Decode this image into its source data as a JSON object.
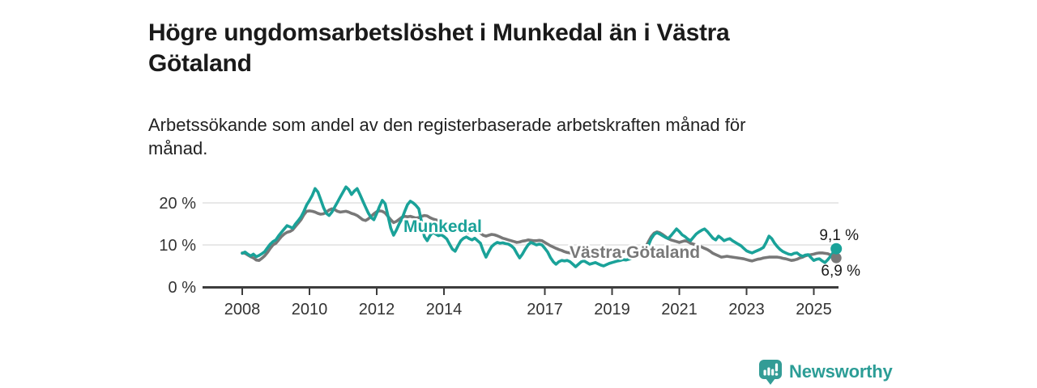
{
  "title": "Högre ungdomsarbetslöshet i Munkedal än i Västra Götaland",
  "subtitle": "Arbetssökande som andel av den registerbaserade arbetskraften månad för månad.",
  "footer": {
    "brand": "Newsworthy",
    "brand_icon": "bar-chart-speech-bubble-icon"
  },
  "colors": {
    "munkedal": "#1aa299",
    "vastra_gotaland": "#787878",
    "axis": "#3d3d3d",
    "grid": "#dbdbdb",
    "title_text": "#1a1a1a",
    "brand_teal": "#2c9d96"
  },
  "chart_data": {
    "type": "line",
    "x_start": "2008-01",
    "x_end": "2025-09",
    "start_year": 2008,
    "points_per_year": 12,
    "ylim": [
      0,
      26
    ],
    "grid": "horizontal-only",
    "legend_position": "inline-labels-on-lines",
    "yticks": [
      {
        "value": 0,
        "label": "0 %",
        "gridline": false
      },
      {
        "value": 10,
        "label": "10 %",
        "gridline": true
      },
      {
        "value": 20,
        "label": "20 %",
        "gridline": true
      }
    ],
    "xticks": [
      {
        "year": 2008,
        "label": "2008"
      },
      {
        "year": 2010,
        "label": "2010"
      },
      {
        "year": 2012,
        "label": "2012"
      },
      {
        "year": 2014,
        "label": "2014"
      },
      {
        "year": 2017,
        "label": "2017"
      },
      {
        "year": 2019,
        "label": "2019"
      },
      {
        "year": 2021,
        "label": "2021"
      },
      {
        "year": 2023,
        "label": "2023"
      },
      {
        "year": 2025,
        "label": "2025"
      }
    ],
    "series": [
      {
        "name": "Munkedal",
        "color": "#1aa299",
        "end_label": "9,1 %",
        "end_value": 9.1,
        "values": [
          8.0,
          8.3,
          7.8,
          7.4,
          7.8,
          7.2,
          7.5,
          7.9,
          8.4,
          9.3,
          10.2,
          10.8,
          11.2,
          12.2,
          13.0,
          13.8,
          14.6,
          14.3,
          14.0,
          15.0,
          15.8,
          16.7,
          18.0,
          19.5,
          20.6,
          21.8,
          23.4,
          22.6,
          20.8,
          18.9,
          17.5,
          17.0,
          17.8,
          19.0,
          20.2,
          21.4,
          22.6,
          23.8,
          23.2,
          22.0,
          22.8,
          23.4,
          22.0,
          20.5,
          19.0,
          17.6,
          16.5,
          16.0,
          17.5,
          19.2,
          20.6,
          19.8,
          17.0,
          14.0,
          12.3,
          13.5,
          15.0,
          16.2,
          18.0,
          19.6,
          20.4,
          20.0,
          19.4,
          18.6,
          15.5,
          12.0,
          11.0,
          12.2,
          13.0,
          12.6,
          12.2,
          12.4,
          12.0,
          11.4,
          10.2,
          9.0,
          8.5,
          9.8,
          11.0,
          11.6,
          11.9,
          11.5,
          11.2,
          11.6,
          11.0,
          10.4,
          8.6,
          7.1,
          8.4,
          9.6,
          10.2,
          10.6,
          10.4,
          10.5,
          10.3,
          10.2,
          9.8,
          9.2,
          8.0,
          6.9,
          7.8,
          9.0,
          10.0,
          10.6,
          10.3,
          10.0,
          10.2,
          10.0,
          9.2,
          8.3,
          7.0,
          6.0,
          5.4,
          6.0,
          6.3,
          6.2,
          6.3,
          6.0,
          5.4,
          4.8,
          5.4,
          6.0,
          6.2,
          5.8,
          5.4,
          5.6,
          5.8,
          5.5,
          5.2,
          5.0,
          5.3,
          5.6,
          5.8,
          6.0,
          6.2,
          6.3,
          6.5,
          6.4,
          6.6,
          6.8,
          7.0,
          7.2,
          7.4,
          7.6,
          8.5,
          10.0,
          11.5,
          12.5,
          12.9,
          12.6,
          12.2,
          11.8,
          11.5,
          12.2,
          13.0,
          13.8,
          13.2,
          12.4,
          12.0,
          11.4,
          11.0,
          11.8,
          12.6,
          13.1,
          13.5,
          13.8,
          13.2,
          12.4,
          11.6,
          11.2,
          12.1,
          11.6,
          11.0,
          11.3,
          11.5,
          11.0,
          10.6,
          10.2,
          9.8,
          9.2,
          8.6,
          8.3,
          8.1,
          8.4,
          8.7,
          9.0,
          9.4,
          10.6,
          12.1,
          11.5,
          10.4,
          9.6,
          8.9,
          8.4,
          8.1,
          7.8,
          7.7,
          8.0,
          8.1,
          7.6,
          7.3,
          7.6,
          7.7,
          7.0,
          6.3,
          6.6,
          6.7,
          6.2,
          5.8,
          6.5,
          7.3,
          8.3,
          9.1
        ]
      },
      {
        "name": "Västra Götaland",
        "color": "#787878",
        "end_label": "6,9 %",
        "end_value": 6.9,
        "values": [
          8.1,
          8.0,
          7.6,
          7.2,
          6.9,
          6.4,
          6.3,
          6.8,
          7.4,
          8.2,
          9.2,
          10.0,
          10.4,
          11.2,
          12.0,
          12.6,
          13.0,
          13.2,
          13.6,
          14.4,
          15.2,
          16.0,
          17.2,
          18.0,
          18.1,
          18.0,
          17.8,
          17.5,
          17.3,
          17.4,
          17.8,
          18.3,
          18.6,
          18.4,
          18.0,
          17.8,
          17.9,
          18.0,
          17.8,
          17.5,
          17.3,
          17.0,
          16.5,
          16.0,
          15.8,
          16.2,
          16.8,
          17.4,
          17.9,
          18.1,
          18.0,
          17.6,
          16.8,
          16.0,
          15.3,
          15.6,
          16.1,
          16.6,
          16.8,
          16.7,
          16.8,
          16.6,
          16.4,
          16.5,
          16.8,
          17.0,
          16.9,
          16.5,
          16.2,
          16.0,
          15.8,
          15.5,
          15.2,
          14.8,
          14.4,
          14.0,
          13.6,
          13.4,
          13.2,
          13.0,
          12.9,
          13.0,
          13.1,
          13.3,
          13.2,
          12.8,
          12.3,
          12.1,
          12.3,
          12.5,
          12.4,
          12.2,
          11.9,
          11.6,
          11.4,
          11.2,
          11.0,
          10.8,
          10.6,
          10.7,
          10.9,
          11.0,
          11.2,
          11.1,
          11.0,
          11.0,
          11.1,
          11.0,
          10.6,
          10.2,
          9.8,
          9.5,
          9.2,
          8.9,
          8.7,
          8.4,
          8.2,
          8.1,
          8.2,
          8.3,
          8.3,
          8.4,
          8.5,
          8.6,
          8.5,
          8.4,
          8.3,
          8.2,
          8.1,
          8.0,
          8.1,
          8.2,
          8.2,
          8.3,
          8.3,
          8.4,
          8.4,
          8.5,
          8.5,
          8.4,
          8.4,
          8.5,
          8.6,
          8.8,
          9.5,
          10.8,
          12.0,
          12.8,
          13.1,
          12.9,
          12.5,
          12.0,
          11.5,
          11.2,
          11.0,
          10.8,
          10.6,
          10.8,
          11.0,
          10.8,
          10.4,
          10.2,
          10.0,
          9.8,
          9.5,
          9.2,
          8.9,
          8.5,
          8.0,
          7.7,
          7.4,
          7.1,
          7.2,
          7.3,
          7.2,
          7.1,
          7.0,
          6.9,
          6.8,
          6.7,
          6.5,
          6.3,
          6.2,
          6.4,
          6.6,
          6.7,
          6.9,
          7.0,
          7.1,
          7.1,
          7.1,
          7.1,
          7.0,
          6.8,
          6.7,
          6.5,
          6.3,
          6.4,
          6.6,
          6.9,
          7.1,
          7.4,
          7.6,
          7.7,
          7.8,
          8.0,
          8.1,
          8.1,
          8.0,
          7.9,
          7.6,
          7.2,
          6.9
        ]
      }
    ]
  }
}
